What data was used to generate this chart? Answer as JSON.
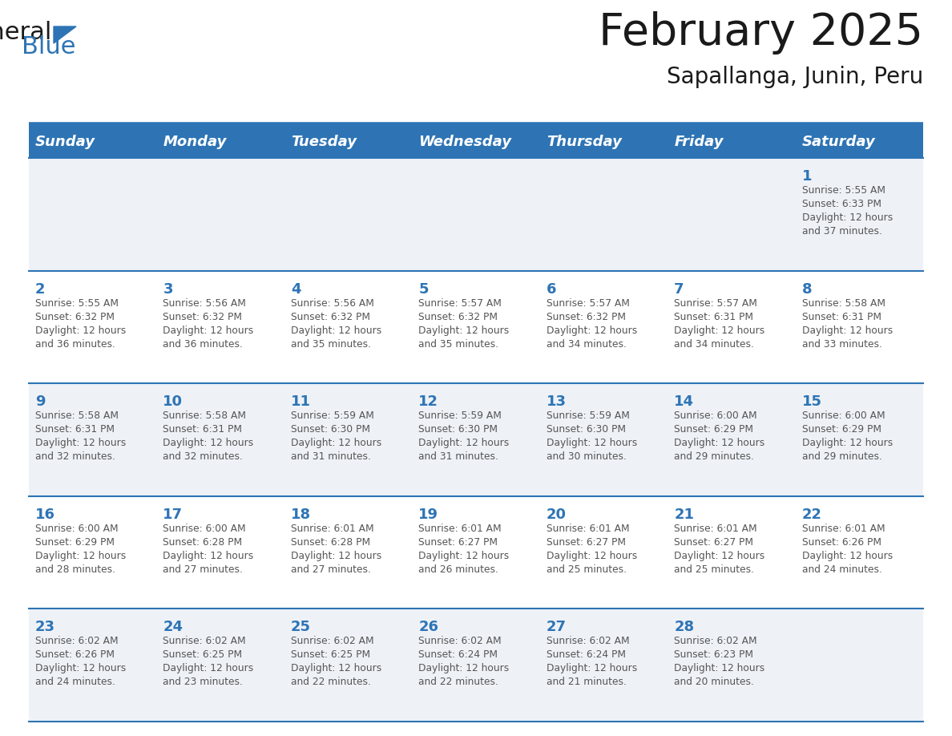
{
  "title": "February 2025",
  "subtitle": "Sapallanga, Junin, Peru",
  "header_bg": "#2E74B5",
  "header_text_color": "#FFFFFF",
  "cell_border_color": "#2E74B5",
  "day_number_color": "#2E74B5",
  "info_text_color": "#555555",
  "background_color": "#FFFFFF",
  "alt_row_color": "#EEF2F7",
  "days_of_week": [
    "Sunday",
    "Monday",
    "Tuesday",
    "Wednesday",
    "Thursday",
    "Friday",
    "Saturday"
  ],
  "calendar_data": [
    [
      null,
      null,
      null,
      null,
      null,
      null,
      {
        "day": 1,
        "sunrise": "5:55 AM",
        "sunset": "6:33 PM",
        "daylight_line1": "Daylight: 12 hours",
        "daylight_line2": "and 37 minutes."
      }
    ],
    [
      {
        "day": 2,
        "sunrise": "5:55 AM",
        "sunset": "6:32 PM",
        "daylight_line1": "Daylight: 12 hours",
        "daylight_line2": "and 36 minutes."
      },
      {
        "day": 3,
        "sunrise": "5:56 AM",
        "sunset": "6:32 PM",
        "daylight_line1": "Daylight: 12 hours",
        "daylight_line2": "and 36 minutes."
      },
      {
        "day": 4,
        "sunrise": "5:56 AM",
        "sunset": "6:32 PM",
        "daylight_line1": "Daylight: 12 hours",
        "daylight_line2": "and 35 minutes."
      },
      {
        "day": 5,
        "sunrise": "5:57 AM",
        "sunset": "6:32 PM",
        "daylight_line1": "Daylight: 12 hours",
        "daylight_line2": "and 35 minutes."
      },
      {
        "day": 6,
        "sunrise": "5:57 AM",
        "sunset": "6:32 PM",
        "daylight_line1": "Daylight: 12 hours",
        "daylight_line2": "and 34 minutes."
      },
      {
        "day": 7,
        "sunrise": "5:57 AM",
        "sunset": "6:31 PM",
        "daylight_line1": "Daylight: 12 hours",
        "daylight_line2": "and 34 minutes."
      },
      {
        "day": 8,
        "sunrise": "5:58 AM",
        "sunset": "6:31 PM",
        "daylight_line1": "Daylight: 12 hours",
        "daylight_line2": "and 33 minutes."
      }
    ],
    [
      {
        "day": 9,
        "sunrise": "5:58 AM",
        "sunset": "6:31 PM",
        "daylight_line1": "Daylight: 12 hours",
        "daylight_line2": "and 32 minutes."
      },
      {
        "day": 10,
        "sunrise": "5:58 AM",
        "sunset": "6:31 PM",
        "daylight_line1": "Daylight: 12 hours",
        "daylight_line2": "and 32 minutes."
      },
      {
        "day": 11,
        "sunrise": "5:59 AM",
        "sunset": "6:30 PM",
        "daylight_line1": "Daylight: 12 hours",
        "daylight_line2": "and 31 minutes."
      },
      {
        "day": 12,
        "sunrise": "5:59 AM",
        "sunset": "6:30 PM",
        "daylight_line1": "Daylight: 12 hours",
        "daylight_line2": "and 31 minutes."
      },
      {
        "day": 13,
        "sunrise": "5:59 AM",
        "sunset": "6:30 PM",
        "daylight_line1": "Daylight: 12 hours",
        "daylight_line2": "and 30 minutes."
      },
      {
        "day": 14,
        "sunrise": "6:00 AM",
        "sunset": "6:29 PM",
        "daylight_line1": "Daylight: 12 hours",
        "daylight_line2": "and 29 minutes."
      },
      {
        "day": 15,
        "sunrise": "6:00 AM",
        "sunset": "6:29 PM",
        "daylight_line1": "Daylight: 12 hours",
        "daylight_line2": "and 29 minutes."
      }
    ],
    [
      {
        "day": 16,
        "sunrise": "6:00 AM",
        "sunset": "6:29 PM",
        "daylight_line1": "Daylight: 12 hours",
        "daylight_line2": "and 28 minutes."
      },
      {
        "day": 17,
        "sunrise": "6:00 AM",
        "sunset": "6:28 PM",
        "daylight_line1": "Daylight: 12 hours",
        "daylight_line2": "and 27 minutes."
      },
      {
        "day": 18,
        "sunrise": "6:01 AM",
        "sunset": "6:28 PM",
        "daylight_line1": "Daylight: 12 hours",
        "daylight_line2": "and 27 minutes."
      },
      {
        "day": 19,
        "sunrise": "6:01 AM",
        "sunset": "6:27 PM",
        "daylight_line1": "Daylight: 12 hours",
        "daylight_line2": "and 26 minutes."
      },
      {
        "day": 20,
        "sunrise": "6:01 AM",
        "sunset": "6:27 PM",
        "daylight_line1": "Daylight: 12 hours",
        "daylight_line2": "and 25 minutes."
      },
      {
        "day": 21,
        "sunrise": "6:01 AM",
        "sunset": "6:27 PM",
        "daylight_line1": "Daylight: 12 hours",
        "daylight_line2": "and 25 minutes."
      },
      {
        "day": 22,
        "sunrise": "6:01 AM",
        "sunset": "6:26 PM",
        "daylight_line1": "Daylight: 12 hours",
        "daylight_line2": "and 24 minutes."
      }
    ],
    [
      {
        "day": 23,
        "sunrise": "6:02 AM",
        "sunset": "6:26 PM",
        "daylight_line1": "Daylight: 12 hours",
        "daylight_line2": "and 24 minutes."
      },
      {
        "day": 24,
        "sunrise": "6:02 AM",
        "sunset": "6:25 PM",
        "daylight_line1": "Daylight: 12 hours",
        "daylight_line2": "and 23 minutes."
      },
      {
        "day": 25,
        "sunrise": "6:02 AM",
        "sunset": "6:25 PM",
        "daylight_line1": "Daylight: 12 hours",
        "daylight_line2": "and 22 minutes."
      },
      {
        "day": 26,
        "sunrise": "6:02 AM",
        "sunset": "6:24 PM",
        "daylight_line1": "Daylight: 12 hours",
        "daylight_line2": "and 22 minutes."
      },
      {
        "day": 27,
        "sunrise": "6:02 AM",
        "sunset": "6:24 PM",
        "daylight_line1": "Daylight: 12 hours",
        "daylight_line2": "and 21 minutes."
      },
      {
        "day": 28,
        "sunrise": "6:02 AM",
        "sunset": "6:23 PM",
        "daylight_line1": "Daylight: 12 hours",
        "daylight_line2": "and 20 minutes."
      },
      null
    ]
  ]
}
